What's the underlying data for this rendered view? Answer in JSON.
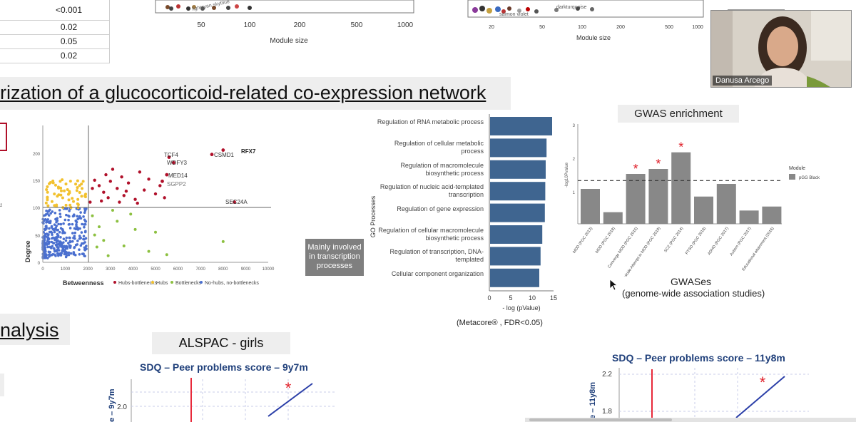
{
  "pval_table": {
    "rows": [
      "<0.001",
      "0.02",
      "0.05",
      "0.02"
    ]
  },
  "module_plots": {
    "left": {
      "ticks": [
        "50",
        "100",
        "200",
        "500",
        "1000"
      ],
      "xlabel": "Module size"
    },
    "right": {
      "ticks": [
        "20",
        "50",
        "100",
        "200",
        "500",
        "1000"
      ],
      "xlabel": "Module size"
    }
  },
  "section_title": "rization of a glucocorticoid-related co-expression network",
  "scatter": {
    "ylabel": "Degree",
    "xlabel": "Betweenness",
    "yticks": [
      "0",
      "50",
      "100",
      "150",
      "200"
    ],
    "xticks": [
      "0",
      "1000",
      "2000",
      "3000",
      "4000",
      "5000",
      "6000",
      "7000",
      "8000",
      "9000",
      "10000"
    ],
    "gene_labels": [
      "TCF4",
      "CSMD1",
      "RFX7",
      "WDFY3",
      "MED14",
      "SGPP2",
      "SEC24A"
    ],
    "legend": [
      "Hubs-bottlenecks",
      "Hubs",
      "Bottlenecks",
      "No-hubs, no-bottlenecks"
    ],
    "colors": {
      "hubs_bottlenecks": "#b0102a",
      "hubs": "#f2c12e",
      "bottlenecks": "#8cc040",
      "non": "#4a6fcf"
    }
  },
  "go_chart": {
    "ylabel": "GO Processes",
    "xlabel": "- log (pValue)",
    "xticks": [
      "0",
      "5",
      "10",
      "15"
    ],
    "color": "#3f6590",
    "categories": [
      "Regulation of RNA metabolic process",
      "Regulation of cellular metabolic process",
      "Regulation of macromolecule biosynthetic process",
      "Regulation of nucleic acid-templated transcription",
      "Regulation of gene expression",
      "Regulation of cellular macromolecule biosynthetic process",
      "Regulation of transcription, DNA-templated",
      "Cellular component organization"
    ],
    "values": [
      14.5,
      13.2,
      13.0,
      12.9,
      12.8,
      12.2,
      11.8,
      11.5
    ],
    "xlim": [
      0,
      15
    ],
    "note": "(Metacore® , FDR<0.05)"
  },
  "callout": {
    "lines": [
      "Mainly involved",
      "in transcription",
      "processes"
    ]
  },
  "gwas": {
    "title": "GWAS enrichment",
    "ylabel": "-log10Pvalue",
    "yticks": [
      "1",
      "2",
      "3"
    ],
    "categories": [
      "MDD (PGC 2013)",
      "MDD (PGC 2018)",
      "Converge MDD (PGC 2015)",
      "Suicide Attempt in MDD (PGC 2019)",
      "SCZ (PGC 2014)",
      "PTSD (PGC 2018)",
      "ADHD (PGC 2017)",
      "Autism (PGC 2017)",
      "Educational attainment (2016)"
    ],
    "values": [
      1.05,
      0.35,
      1.5,
      1.65,
      2.15,
      0.82,
      1.2,
      0.4,
      0.52
    ],
    "significant": [
      false,
      false,
      true,
      true,
      true,
      false,
      false,
      false,
      false
    ],
    "threshold": 1.3,
    "ylim": [
      0,
      3
    ],
    "legend_title": "Module",
    "legend_item": "pGG Black",
    "bar_color": "#888888",
    "star_color": "#e0202a",
    "xlabel_big": "GWASes",
    "subtitle": "(genome-wide association studies)"
  },
  "analysis_title": "nalysis",
  "alspac_title": "ALSPAC - girls",
  "sdq_left": {
    "title": "SDQ – Peer problems score – 9y7m",
    "ylabel": "e – 9y7m",
    "ytick": "2.0"
  },
  "sdq_right": {
    "title": "SDQ – Peer problems score – 11y8m",
    "ylabel": "e – 11y8m",
    "yticks": [
      "2.2",
      "1.8"
    ]
  },
  "video": {
    "name": "Danusa Arcego"
  }
}
